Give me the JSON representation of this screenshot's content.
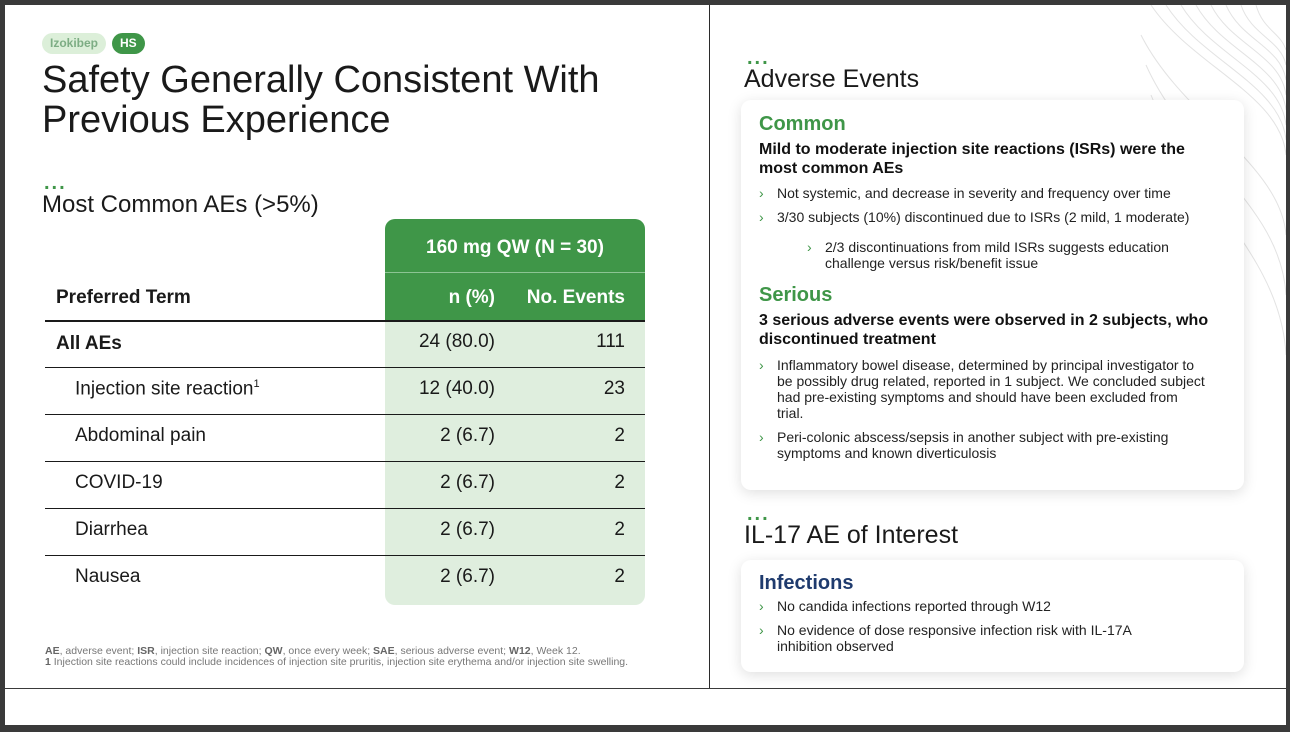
{
  "tags": {
    "product": "Izokibep",
    "indication": "HS"
  },
  "title": "Safety Generally Consistent With Previous Experience",
  "left_section": {
    "dots": "...",
    "title": "Most Common AEs (>5%)"
  },
  "table": {
    "group_header": "160 mg QW (N = 30)",
    "col_term": "Preferred Term",
    "col_n": "n (%)",
    "col_events": "No. Events",
    "rows": [
      {
        "term": "All AEs",
        "n": "24 (80.0)",
        "events": "111"
      },
      {
        "term": "Injection site reaction",
        "sup": "1",
        "n": "12 (40.0)",
        "events": "23"
      },
      {
        "term": "Abdominal pain",
        "n": "2 (6.7)",
        "events": "2"
      },
      {
        "term": "COVID-19",
        "n": "2 (6.7)",
        "events": "2"
      },
      {
        "term": "Diarrhea",
        "n": "2 (6.7)",
        "events": "2"
      },
      {
        "term": "Nausea",
        "n": "2 (6.7)",
        "events": "2"
      }
    ]
  },
  "footnote": {
    "abbreviations": [
      {
        "abbr": "AE",
        "def": ", adverse event; "
      },
      {
        "abbr": "ISR",
        "def": ", injection site reaction; "
      },
      {
        "abbr": "QW",
        "def": ", once every week; "
      },
      {
        "abbr": "SAE",
        "def": ", serious adverse event; "
      },
      {
        "abbr": "W12",
        "def": ", Week 12."
      }
    ],
    "note_number": "1",
    "note_text": " Injection site reactions could include incidences of injection site pruritis, injection site erythema and/or injection site swelling."
  },
  "adverse_events": {
    "dots": "...",
    "title": "Adverse Events",
    "common": {
      "heading": "Common",
      "bold": "Mild to moderate injection site reactions (ISRs) were the most common AEs",
      "bullets": [
        "Not systemic, and decrease in severity and frequency over time",
        "3/30 subjects (10%) discontinued due to ISRs (2 mild, 1 moderate)"
      ],
      "sub_bullet": "2/3 discontinuations from mild ISRs suggests education challenge versus risk/benefit issue"
    },
    "serious": {
      "heading": "Serious",
      "bold": "3 serious adverse events were observed in 2 subjects, who discontinued treatment",
      "bullets": [
        "Inflammatory bowel disease, determined by principal investigator to be possibly drug related, reported in 1 subject. We concluded subject had pre-existing symptoms and should have been excluded from trial.",
        "Peri-colonic abscess/sepsis in another subject with pre-existing symptoms and known diverticulosis"
      ]
    }
  },
  "il17": {
    "dots": "...",
    "title": "IL-17 AE of Interest",
    "infections": {
      "heading": "Infections",
      "bullets": [
        "No candida infections reported through W12",
        "No evidence of dose responsive infection risk with IL-17A inhibition observed"
      ]
    }
  },
  "colors": {
    "brand_green": "#3f9648",
    "light_green": "#dfeede",
    "navy": "#1f3b6e"
  },
  "icons": {
    "bullet": "chevron-right-icon"
  }
}
